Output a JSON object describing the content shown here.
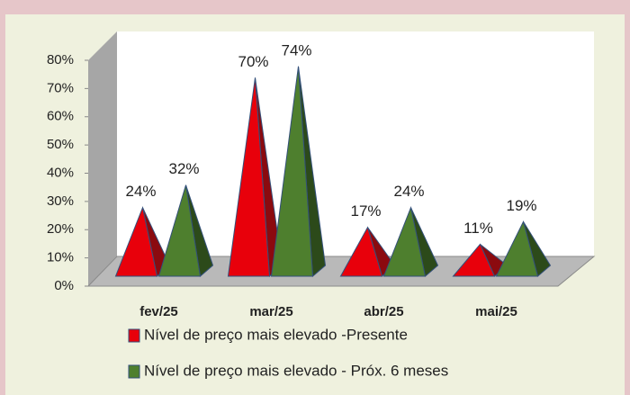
{
  "chart_data": {
    "type": "pyramid",
    "categories": [
      "fev/25",
      "mar/25",
      "abr/25",
      "mai/25"
    ],
    "series": [
      {
        "name": "Nível de preço mais elevado -Presente",
        "color": "#e8000b",
        "side_color": "#8b0a0f",
        "values": [
          24,
          70,
          17,
          11
        ],
        "value_labels": [
          "24%",
          "70%",
          "17%",
          "11%"
        ]
      },
      {
        "name": "Nível de preço mais elevado - Próx. 6 meses",
        "color": "#4e7f2e",
        "side_color": "#2c4a1a",
        "values": [
          32,
          74,
          24,
          19
        ],
        "value_labels": [
          "32%",
          "74%",
          "24%",
          "19%"
        ]
      }
    ],
    "ylim": [
      0,
      80
    ],
    "yticks": [
      {
        "value": 0,
        "label": "0%"
      },
      {
        "value": 10,
        "label": "10%"
      },
      {
        "value": 20,
        "label": "20%"
      },
      {
        "value": 30,
        "label": "30%"
      },
      {
        "value": 40,
        "label": "40%"
      },
      {
        "value": 50,
        "label": "50%"
      },
      {
        "value": 60,
        "label": "60%"
      },
      {
        "value": 70,
        "label": "70%"
      },
      {
        "value": 80,
        "label": "80%"
      }
    ]
  }
}
